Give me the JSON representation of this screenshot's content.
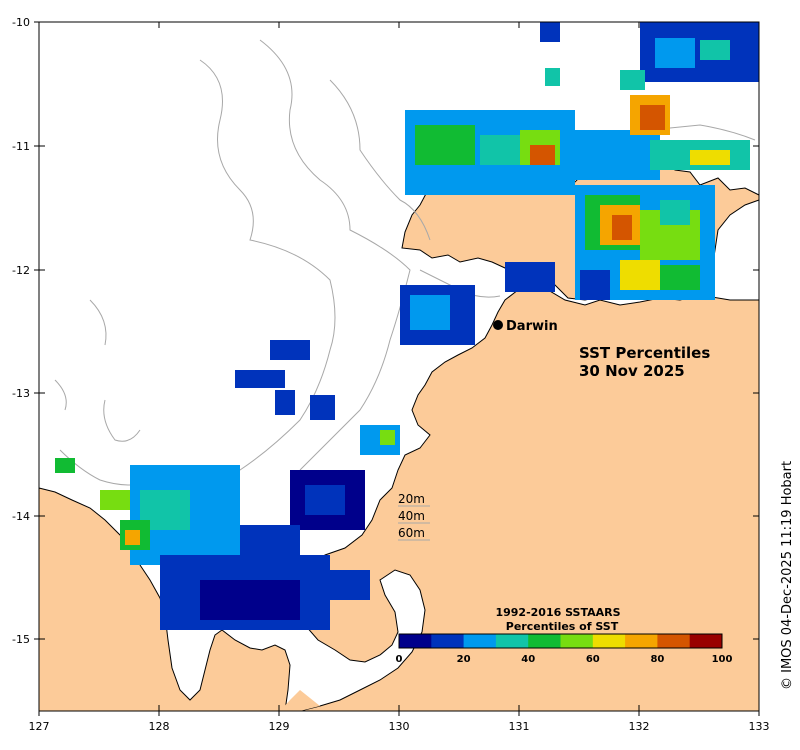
{
  "map": {
    "title_line1": "SST Percentiles",
    "title_line2": "30 Nov 2025",
    "city": "Darwin",
    "depth_labels": [
      "20m",
      "40m",
      "60m"
    ],
    "credit": "© IMOS 04-Dec-2025 11:19 Hobart",
    "land_color": "#fccb99",
    "coast_color": "#000000",
    "contour_color": "#a8a8a8"
  },
  "axes": {
    "lon_ticks": [
      "127",
      "128",
      "129",
      "130",
      "131",
      "132",
      "133"
    ],
    "lat_ticks": [
      "-10",
      "-11",
      "-12",
      "-13",
      "-14",
      "-15"
    ]
  },
  "colorbar": {
    "title_line1": "1992-2016 SSTAARS",
    "title_line2": "Percentiles of SST",
    "ticks": [
      "0",
      "20",
      "40",
      "60",
      "80",
      "100"
    ],
    "colors": [
      "#00008b",
      "#0033bb",
      "#0099ee",
      "#11c4a8",
      "#11bb33",
      "#77dd11",
      "#eedd00",
      "#f5a500",
      "#d45500",
      "#990000"
    ]
  }
}
